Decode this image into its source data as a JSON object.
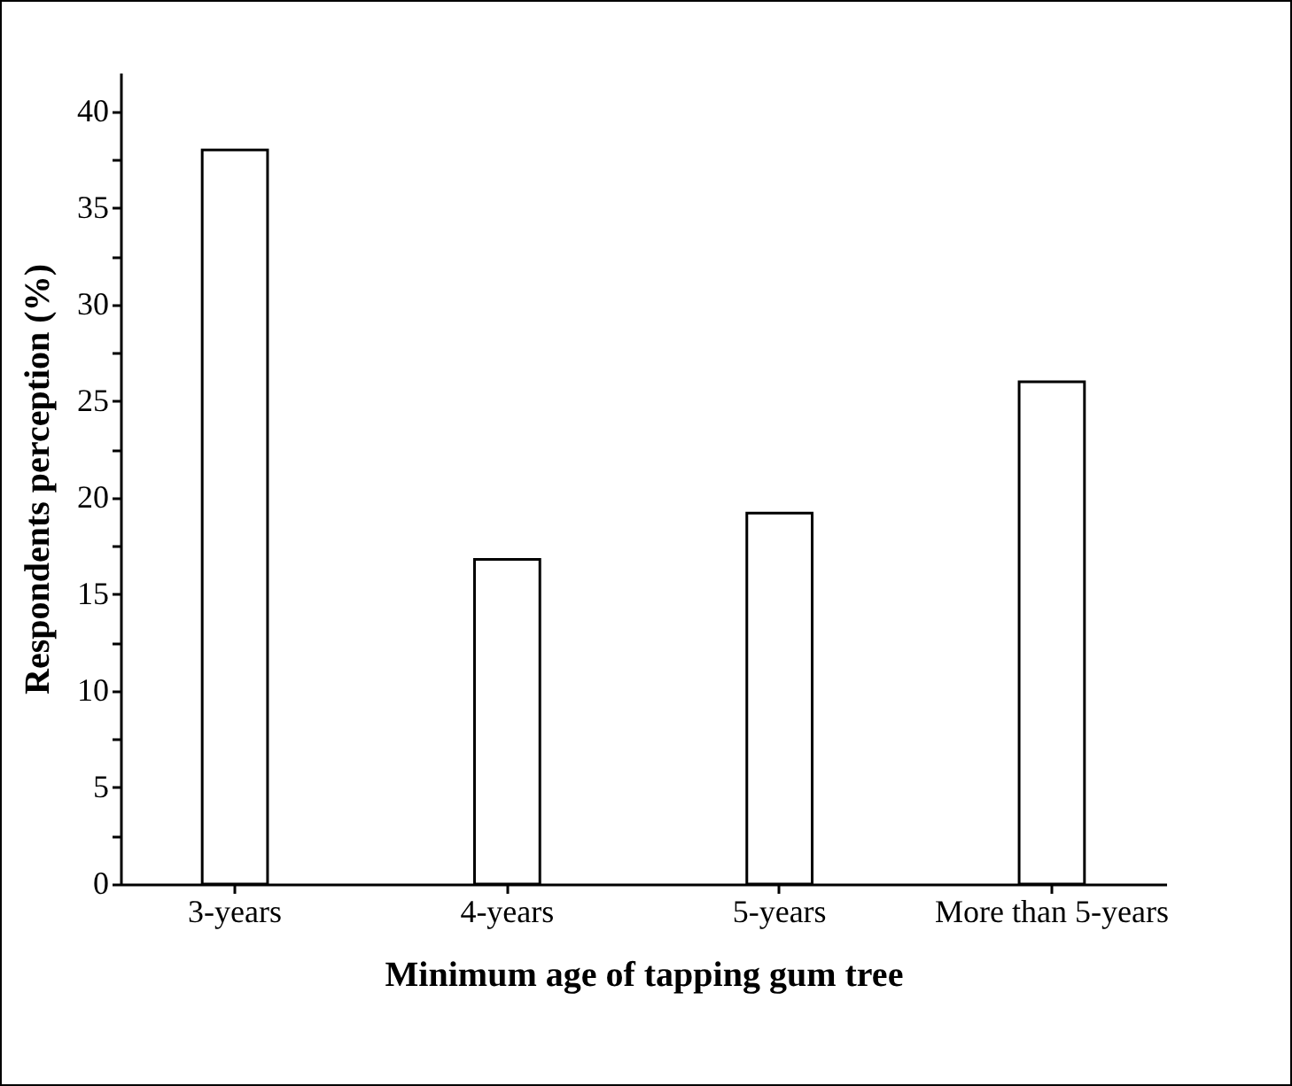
{
  "chart_data": {
    "type": "bar",
    "xlabel": "Minimum age of tapping gum tree",
    "ylabel": "Respondents perception (%)",
    "categories": [
      "3-years",
      "4-years",
      "5-years",
      "More than 5-years"
    ],
    "values": [
      38,
      16.8,
      19.2,
      26
    ],
    "color": "#ffffff",
    "ylim": [
      0,
      42
    ],
    "yticks": [
      0,
      {
        "value": 2.5,
        "label": null
      },
      5,
      {
        "value": 7.5,
        "label": null
      },
      10,
      {
        "value": 12.5,
        "label": null
      },
      15,
      {
        "value": 17.5,
        "label": null
      },
      20,
      {
        "value": 22.5,
        "label": null
      },
      25,
      {
        "value": 27.5,
        "label": null
      },
      30,
      {
        "value": 32.5,
        "label": null
      },
      35,
      {
        "value": 37.5,
        "label": null
      },
      40
    ],
    "grid": false
  }
}
